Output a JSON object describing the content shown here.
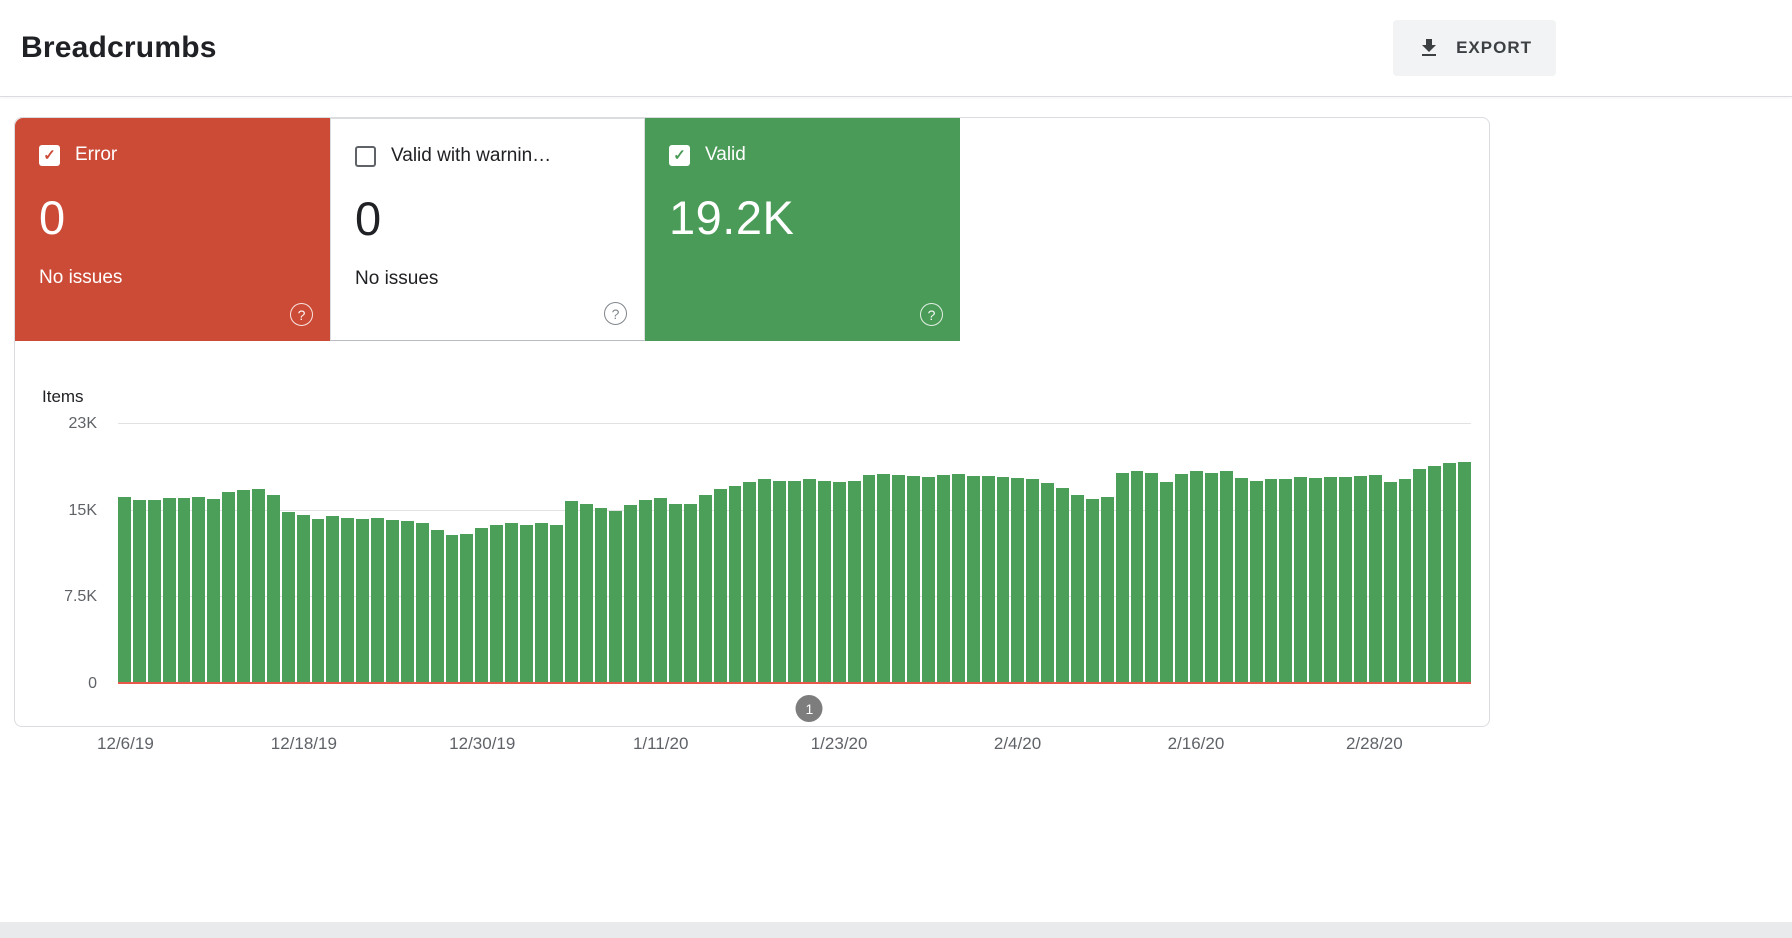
{
  "header": {
    "title": "Breadcrumbs",
    "export_label": "EXPORT"
  },
  "icons": {
    "check_glyph": "✓",
    "help_glyph": "?"
  },
  "cards": [
    {
      "id": "error",
      "label": "Error",
      "value": "0",
      "subtext": "No issues",
      "checked": true,
      "color": "#cc4b37"
    },
    {
      "id": "warning",
      "label": "Valid with warnin…",
      "value": "0",
      "subtext": "No issues",
      "checked": false,
      "color": "#ffffff"
    },
    {
      "id": "valid",
      "label": "Valid",
      "value": "19.2K",
      "subtext": "",
      "checked": true,
      "color": "#4a9b57"
    }
  ],
  "chart_data": {
    "type": "bar",
    "ylabel": "Items",
    "ylim": [
      0,
      22500
    ],
    "grid": true,
    "bar_color": "#4c9f59",
    "baseline_color": "#e8594c",
    "yticks": [
      {
        "value": 22500,
        "label": "23K"
      },
      {
        "value": 15000,
        "label": "15K"
      },
      {
        "value": 7500,
        "label": "7.5K"
      },
      {
        "value": 0,
        "label": "0"
      }
    ],
    "x_start_date": "12/6/19",
    "x_tick_labels": [
      {
        "index": 0,
        "label": "12/6/19"
      },
      {
        "index": 12,
        "label": "12/18/19"
      },
      {
        "index": 24,
        "label": "12/30/19"
      },
      {
        "index": 36,
        "label": "1/11/20"
      },
      {
        "index": 48,
        "label": "1/23/20"
      },
      {
        "index": 60,
        "label": "2/4/20"
      },
      {
        "index": 72,
        "label": "2/16/20"
      },
      {
        "index": 84,
        "label": "2/28/20"
      }
    ],
    "values": [
      16200,
      15900,
      15900,
      16100,
      16100,
      16200,
      16000,
      16600,
      16800,
      16900,
      16400,
      14900,
      14600,
      14300,
      14500,
      14400,
      14300,
      14400,
      14200,
      14100,
      13900,
      13300,
      12900,
      13000,
      13500,
      13800,
      13900,
      13800,
      13900,
      13800,
      15800,
      15600,
      15200,
      15000,
      15500,
      15900,
      16100,
      15600,
      15600,
      16400,
      16900,
      17100,
      17500,
      17700,
      17600,
      17600,
      17700,
      17600,
      17500,
      17600,
      18100,
      18200,
      18100,
      18000,
      17900,
      18100,
      18200,
      18000,
      18000,
      17900,
      17800,
      17700,
      17400,
      17000,
      16400,
      16000,
      16200,
      18300,
      18400,
      18300,
      17500,
      18200,
      18400,
      18300,
      18400,
      17800,
      17600,
      17700,
      17700,
      17900,
      17800,
      17900,
      17900,
      18000,
      18100,
      17500,
      17700,
      18600,
      18900,
      19100,
      19200
    ],
    "annotation_marker": {
      "label": "1",
      "position_index": 46.5
    }
  }
}
